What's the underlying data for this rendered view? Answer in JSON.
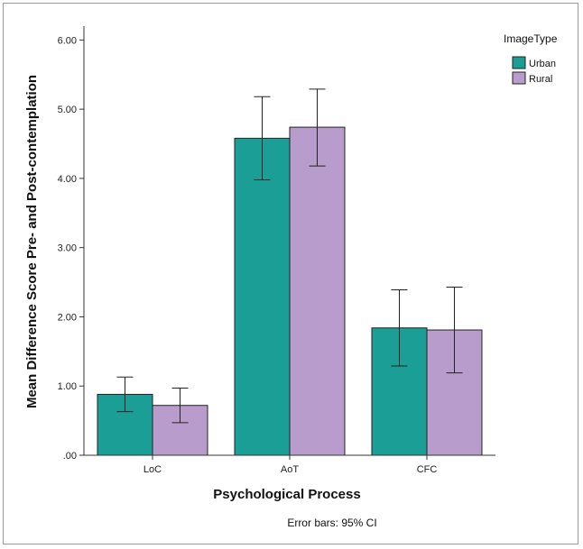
{
  "chart_data": {
    "type": "bar",
    "title": "",
    "xlabel": "Psychological Process",
    "ylabel": "Mean Difference Score Pre- and Post-contemplation",
    "categories": [
      "LoC",
      "AoT",
      "CFC"
    ],
    "ylim": [
      0,
      6.2
    ],
    "yticks": [
      0,
      1,
      2,
      3,
      4,
      5,
      6
    ],
    "ytick_labels": [
      ".00",
      "1.00",
      "2.00",
      "3.00",
      "4.00",
      "5.00",
      "6.00"
    ],
    "grid": false,
    "legend": {
      "title": "ImageType",
      "position": "top-right"
    },
    "series": [
      {
        "name": "Urban",
        "color": "#1a9e96",
        "values": [
          0.88,
          4.58,
          1.84
        ],
        "ci_low": [
          0.63,
          3.98,
          1.29
        ],
        "ci_high": [
          1.13,
          5.18,
          2.39
        ]
      },
      {
        "name": "Rural",
        "color": "#b79ccc",
        "values": [
          0.72,
          4.74,
          1.81
        ],
        "ci_low": [
          0.47,
          4.18,
          1.19
        ],
        "ci_high": [
          0.97,
          5.29,
          2.43
        ]
      }
    ],
    "note": "Error bars: 95% CI"
  }
}
